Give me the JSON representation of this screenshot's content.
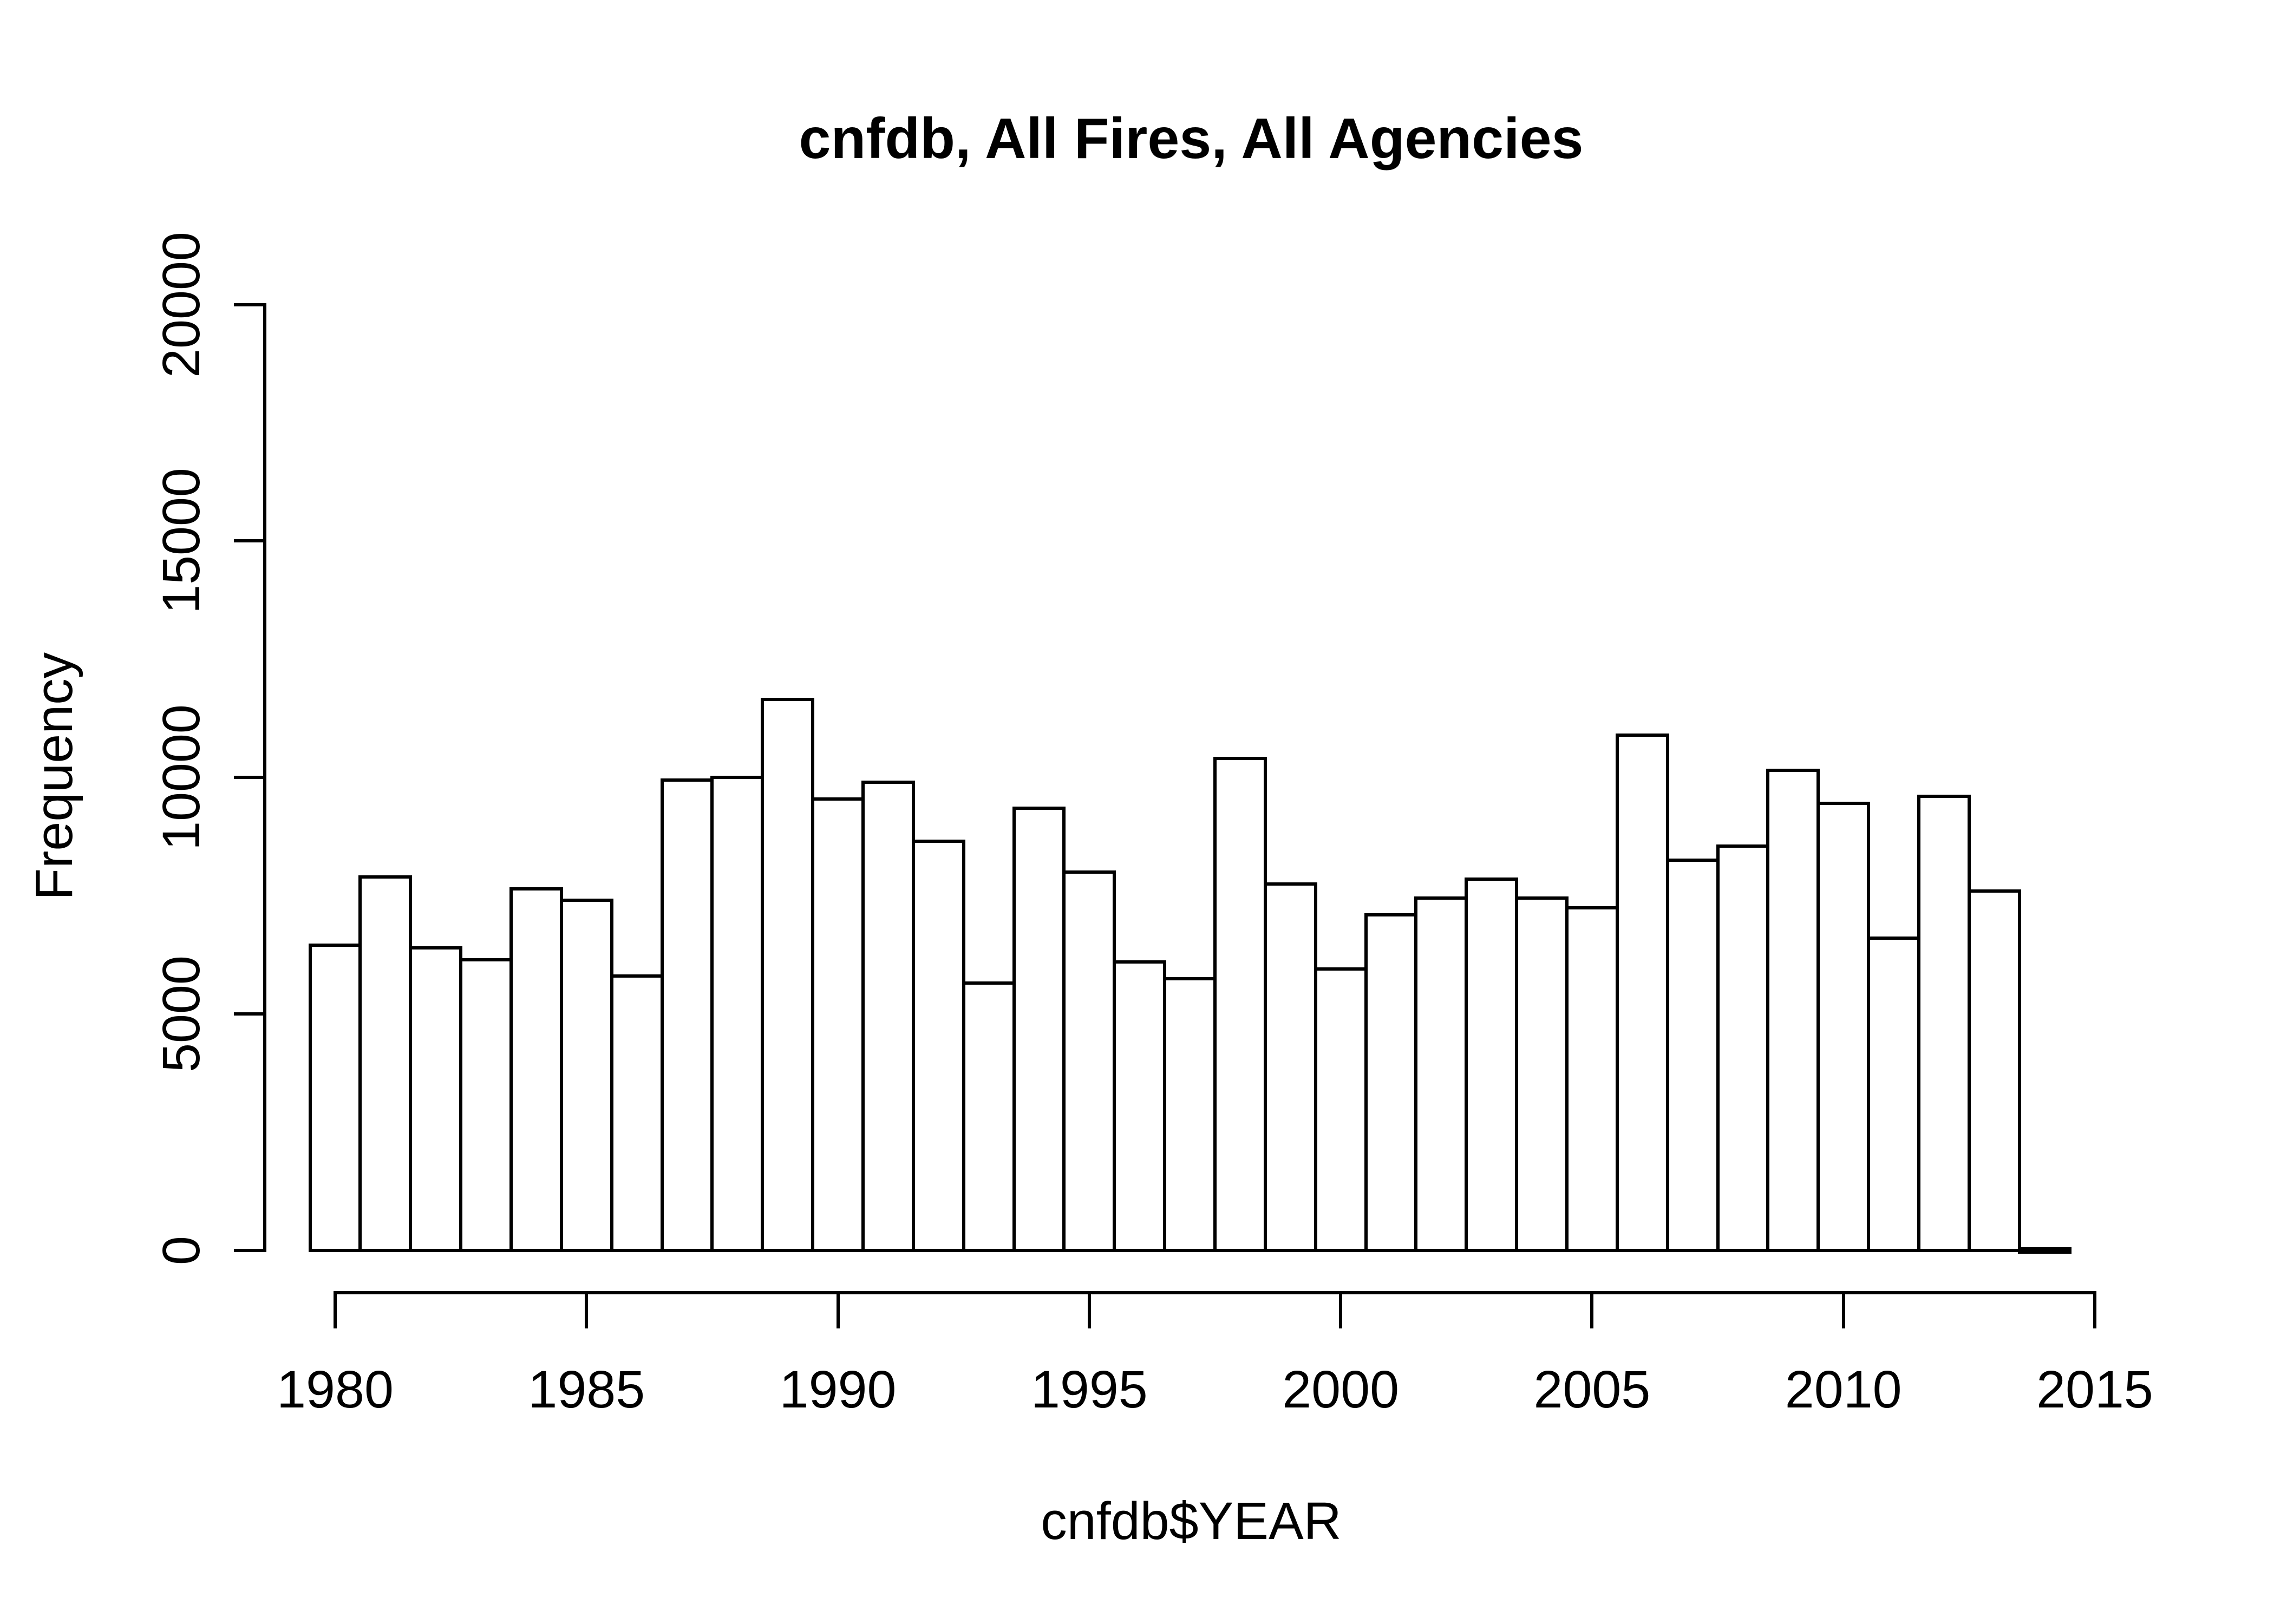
{
  "title": "cnfdb, All Fires, All Agencies",
  "colors": {
    "foreground": "#000000",
    "background": "#ffffff",
    "bar_fill": "#ffffff",
    "bar_border": "#000000"
  },
  "x_axis": {
    "label": "cnfdb$YEAR",
    "tick_labels": [
      "1980",
      "1985",
      "1990",
      "1995",
      "2000",
      "2005",
      "2010",
      "2015"
    ]
  },
  "y_axis": {
    "label": "Frequency",
    "tick_labels": [
      "0",
      "5000",
      "10000",
      "15000",
      "20000"
    ]
  },
  "chart_data": {
    "type": "bar",
    "title": "cnfdb, All Fires, All Agencies",
    "xlabel": "cnfdb$YEAR",
    "ylabel": "Frequency",
    "bin_width": 1,
    "xlim": [
      1979.5,
      2015.5
    ],
    "ylim": [
      0,
      20000
    ],
    "x_ticks": [
      1980,
      1985,
      1990,
      1995,
      2000,
      2005,
      2010,
      2015
    ],
    "y_ticks": [
      0,
      5000,
      10000,
      15000,
      20000
    ],
    "grid": false,
    "legend_position": "none",
    "categories": [
      1980,
      1981,
      1982,
      1983,
      1984,
      1985,
      1986,
      1987,
      1988,
      1989,
      1990,
      1991,
      1992,
      1993,
      1994,
      1995,
      1996,
      1997,
      1998,
      1999,
      2000,
      2001,
      2002,
      2003,
      2004,
      2005,
      2006,
      2007,
      2008,
      2009,
      2010,
      2011,
      2012,
      2013,
      2014
    ],
    "values": [
      6450,
      7900,
      6400,
      6150,
      7650,
      7400,
      5800,
      9950,
      10000,
      11650,
      9550,
      9900,
      8650,
      5650,
      9350,
      8000,
      6100,
      5750,
      10400,
      7750,
      5950,
      7100,
      7450,
      7850,
      7450,
      7250,
      10900,
      8250,
      8550,
      10150,
      9450,
      6600,
      9600,
      7600,
      30
    ]
  }
}
